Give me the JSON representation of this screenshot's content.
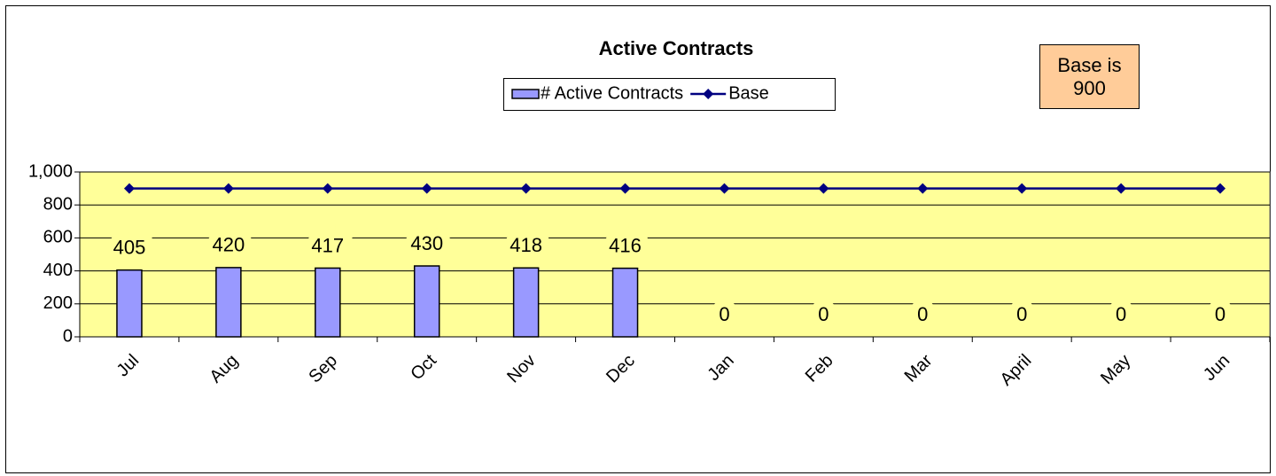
{
  "chart_data": {
    "type": "bar",
    "title": "Active Contracts",
    "categories": [
      "Jul",
      "Aug",
      "Sep",
      "Oct",
      "Nov",
      "Dec",
      "Jan",
      "Feb",
      "Mar",
      "April",
      "May",
      "Jun"
    ],
    "series": [
      {
        "name": "# Active Contracts",
        "type": "bar",
        "color": "#9999ff",
        "values": [
          405,
          420,
          417,
          430,
          418,
          416,
          0,
          0,
          0,
          0,
          0,
          0
        ]
      },
      {
        "name": "Base",
        "type": "line",
        "color": "#000080",
        "values": [
          900,
          900,
          900,
          900,
          900,
          900,
          900,
          900,
          900,
          900,
          900,
          900
        ]
      }
    ],
    "ylim": [
      0,
      1000
    ],
    "yticks": [
      0,
      200,
      400,
      600,
      800,
      {
        "value": 1000,
        "label": "1,000"
      }
    ],
    "grid": true,
    "legend": "top",
    "annotation": "Base is 900"
  }
}
